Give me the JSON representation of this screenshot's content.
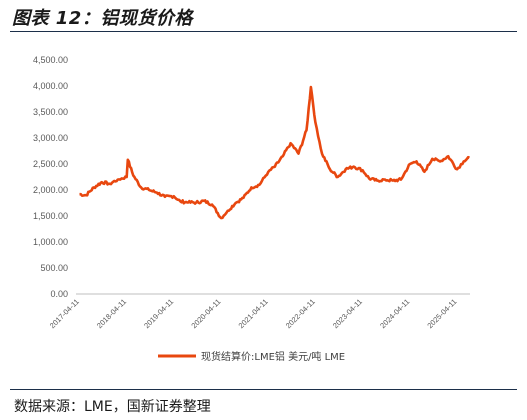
{
  "figure": {
    "title": "图表 12：铝现货价格",
    "source": "数据来源：LME，国新证券整理"
  },
  "colors": {
    "series": "#e8470f",
    "axis": "#bfbfbf",
    "text": "#595959",
    "rule": "#1c2f4a"
  },
  "chart_data": {
    "type": "line",
    "title": "",
    "xlabel": "",
    "ylabel": "",
    "ylim": [
      0,
      4500
    ],
    "yticks": [
      "0.00",
      "500.00",
      "1,000.00",
      "1,500.00",
      "2,000.00",
      "2,500.00",
      "3,000.00",
      "3,500.00",
      "4,000.00",
      "4,500.00"
    ],
    "xticks": [
      "2017-04-11",
      "2018-04-11",
      "2019-04-11",
      "2020-04-11",
      "2021-04-11",
      "2022-04-11",
      "2023-04-11",
      "2024-04-11",
      "2025-04-11"
    ],
    "grid": false,
    "legend": "bottom",
    "series": [
      {
        "name": "现货结算价:LME铝 美元/吨 LME",
        "x": [
          "2017-04-11",
          "2017-06-01",
          "2017-08-01",
          "2017-10-01",
          "2017-12-01",
          "2018-02-01",
          "2018-04-11",
          "2018-04-20",
          "2018-06-01",
          "2018-08-01",
          "2018-10-01",
          "2018-12-01",
          "2019-02-01",
          "2019-04-11",
          "2019-06-01",
          "2019-08-01",
          "2019-10-01",
          "2019-12-01",
          "2020-02-01",
          "2020-04-11",
          "2020-06-01",
          "2020-08-01",
          "2020-10-01",
          "2020-12-01",
          "2021-02-01",
          "2021-04-11",
          "2021-06-01",
          "2021-08-01",
          "2021-10-01",
          "2021-12-01",
          "2022-02-01",
          "2022-03-07",
          "2022-04-11",
          "2022-06-01",
          "2022-08-01",
          "2022-10-01",
          "2022-12-01",
          "2023-02-01",
          "2023-04-11",
          "2023-06-01",
          "2023-08-01",
          "2023-10-01",
          "2023-12-01",
          "2024-02-01",
          "2024-04-11",
          "2024-06-01",
          "2024-08-01",
          "2024-10-01",
          "2024-12-01",
          "2025-02-01",
          "2025-04-11",
          "2025-06-01",
          "2025-07-15"
        ],
        "values": [
          1920,
          1900,
          2050,
          2150,
          2120,
          2200,
          2250,
          2580,
          2280,
          2050,
          2000,
          1950,
          1870,
          1880,
          1780,
          1760,
          1760,
          1790,
          1720,
          1460,
          1600,
          1750,
          1850,
          2050,
          2100,
          2350,
          2450,
          2650,
          2900,
          2700,
          3150,
          3980,
          3300,
          2700,
          2400,
          2250,
          2400,
          2450,
          2380,
          2220,
          2180,
          2200,
          2180,
          2200,
          2500,
          2550,
          2350,
          2600,
          2550,
          2650,
          2400,
          2550,
          2620
        ]
      }
    ]
  }
}
